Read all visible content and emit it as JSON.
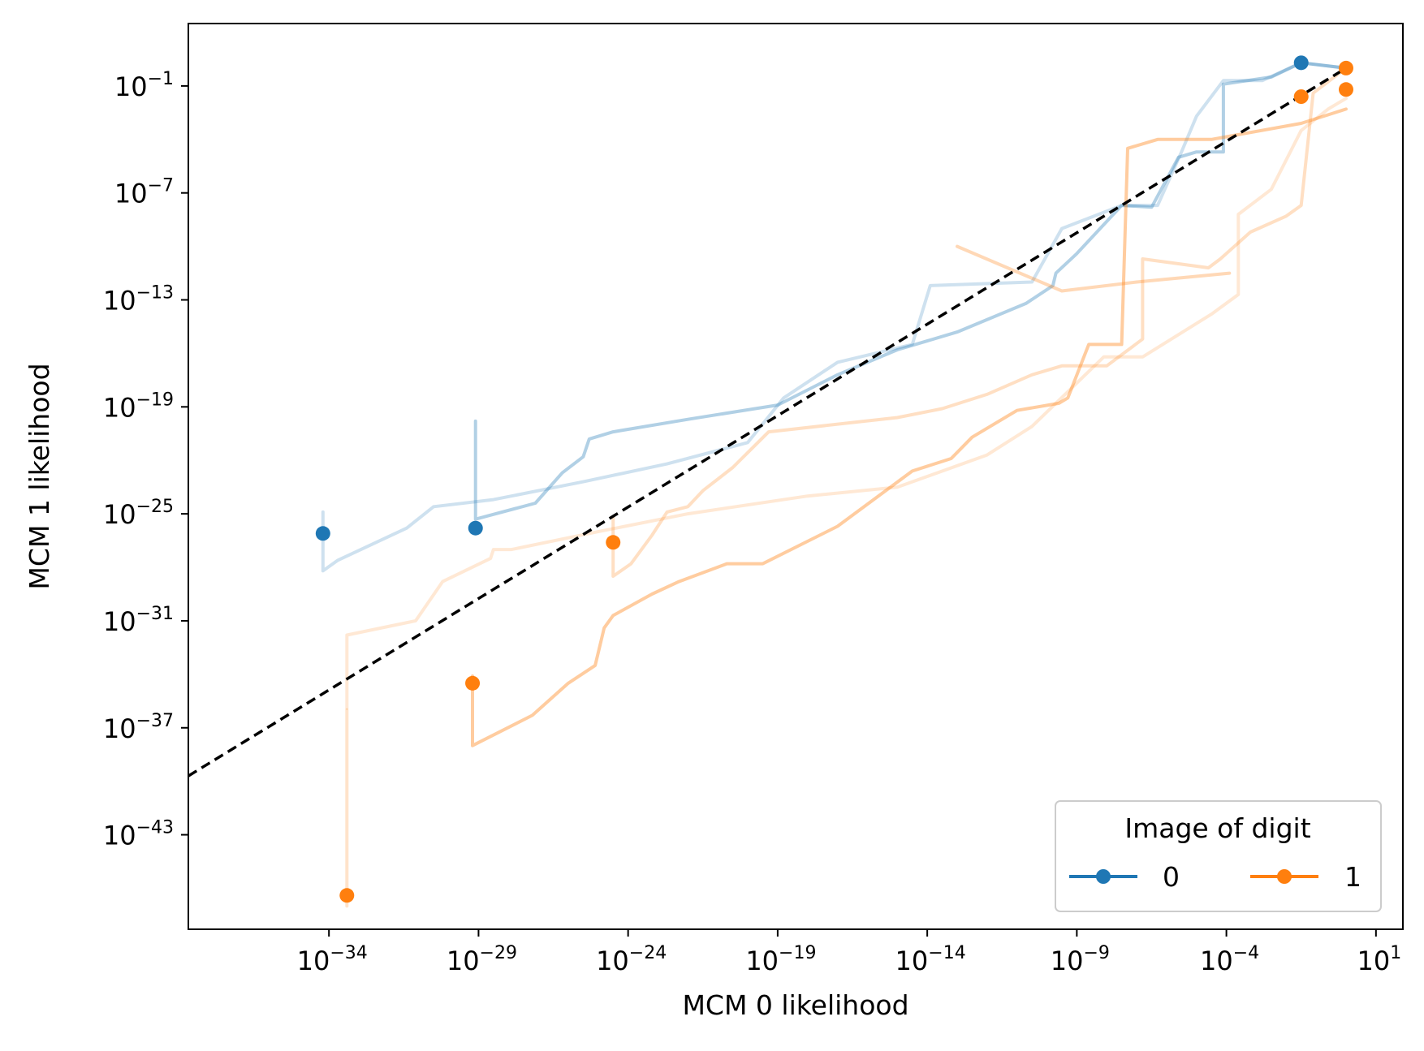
{
  "chart_data": {
    "type": "line",
    "xlabel": "MCM 0 likelihood",
    "ylabel": "MCM 1 likelihood",
    "x_scale": "log",
    "y_scale": "log",
    "xlim_log10": [
      -38.7,
      1.9
    ],
    "ylim_log10": [
      -48.3,
      2.5
    ],
    "x_ticks_log10": [
      -34,
      -29,
      -24,
      -19,
      -14,
      -9,
      -4,
      1
    ],
    "y_ticks_log10": [
      -43,
      -37,
      -31,
      -25,
      -19,
      -13,
      -7,
      -1
    ],
    "tick_base": "10",
    "grid": false,
    "diagonal": {
      "style": "dashed",
      "color": "#000000",
      "from_log10": [
        -38.7,
        -39.7
      ],
      "to_log10": [
        0,
        0
      ]
    },
    "legend": {
      "title": "Image of digit",
      "placement": "bottom-right",
      "entries": [
        {
          "label": "0",
          "color": "#1f77b4"
        },
        {
          "label": "1",
          "color": "#ff7f0e"
        }
      ]
    },
    "series": [
      {
        "digit": "0",
        "color": "#1f77b4",
        "opacity": 0.22,
        "points_log10": [
          [
            -34.2,
            -24.9
          ],
          [
            -34.2,
            -28.2
          ],
          [
            -33.7,
            -27.6
          ],
          [
            -31.4,
            -25.8
          ],
          [
            -30.5,
            -24.6
          ],
          [
            -28.5,
            -24.2
          ],
          [
            -25.5,
            -23.2
          ],
          [
            -22.7,
            -22.2
          ],
          [
            -20,
            -21
          ],
          [
            -18.8,
            -18.5
          ],
          [
            -17,
            -16.5
          ],
          [
            -14.5,
            -15.5
          ],
          [
            -13.9,
            -12.2
          ],
          [
            -10.5,
            -12
          ],
          [
            -9.5,
            -9
          ],
          [
            -7.5,
            -7.7
          ],
          [
            -6.3,
            -7.7
          ],
          [
            -5.5,
            -4.7
          ],
          [
            -5,
            -2.7
          ],
          [
            -4.1,
            -0.7
          ],
          [
            -2.8,
            -0.7
          ],
          [
            -1.5,
            0.3
          ],
          [
            0,
            0
          ]
        ]
      },
      {
        "digit": "0",
        "color": "#1f77b4",
        "opacity": 0.35,
        "points_log10": [
          [
            -29.1,
            -25.3
          ],
          [
            -29.1,
            -19.8
          ],
          [
            -29.1,
            -25.3
          ],
          [
            -27.1,
            -24.4
          ],
          [
            -26.2,
            -22.7
          ],
          [
            -25.5,
            -21.8
          ],
          [
            -25.3,
            -20.8
          ],
          [
            -24.5,
            -20.4
          ],
          [
            -22,
            -19.7
          ],
          [
            -19,
            -18.9
          ],
          [
            -17,
            -17.2
          ],
          [
            -15,
            -15.8
          ],
          [
            -13,
            -14.8
          ],
          [
            -10.7,
            -13.2
          ],
          [
            -9.8,
            -12.2
          ],
          [
            -9.7,
            -11.5
          ],
          [
            -9,
            -10.4
          ],
          [
            -8.5,
            -9.5
          ],
          [
            -7.5,
            -7.7
          ],
          [
            -6.5,
            -7.8
          ],
          [
            -5.6,
            -5
          ],
          [
            -5,
            -4.7
          ],
          [
            -4.1,
            -4.7
          ],
          [
            -4.1,
            -0.9
          ],
          [
            -2.5,
            -0.5
          ],
          [
            -1.5,
            0.3
          ],
          [
            0,
            0
          ]
        ]
      },
      {
        "digit": "1",
        "color": "#ff7f0e",
        "opacity": 0.18,
        "points_log10": [
          [
            -33.4,
            -35.9
          ],
          [
            -33.4,
            -31.8
          ],
          [
            -31.1,
            -31
          ],
          [
            -30.2,
            -28.8
          ],
          [
            -28.6,
            -27.5
          ],
          [
            -28.5,
            -27
          ],
          [
            -27.9,
            -27
          ],
          [
            -25,
            -26
          ],
          [
            -22,
            -25
          ],
          [
            -18,
            -24
          ],
          [
            -15,
            -23.5
          ],
          [
            -12,
            -21.7
          ],
          [
            -10.5,
            -20.1
          ],
          [
            -8.1,
            -16.2
          ],
          [
            -6.8,
            -16.2
          ],
          [
            -4.5,
            -13.8
          ],
          [
            -3.6,
            -12.7
          ],
          [
            -3.6,
            -8.2
          ],
          [
            -2.5,
            -6.8
          ],
          [
            -1.5,
            -3.5
          ],
          [
            -0.6,
            -2.3
          ],
          [
            0,
            -1.7
          ]
        ]
      },
      {
        "digit": "1",
        "color": "#ff7f0e",
        "opacity": 0.22,
        "points_log10": [
          [
            -33.4,
            -41.5
          ],
          [
            -33.4,
            -47
          ],
          [
            -33.4,
            -36
          ]
        ]
      },
      {
        "digit": "1",
        "color": "#ff7f0e",
        "opacity": 0.25,
        "points_log10": [
          [
            -24.5,
            -25.2
          ],
          [
            -24.5,
            -28.5
          ],
          [
            -23.9,
            -27.8
          ],
          [
            -23.2,
            -26.2
          ],
          [
            -22.7,
            -24.9
          ],
          [
            -22,
            -24.6
          ],
          [
            -21.5,
            -23.7
          ],
          [
            -20.5,
            -22.4
          ],
          [
            -19.3,
            -20.4
          ],
          [
            -15,
            -19.6
          ],
          [
            -13.5,
            -19.1
          ],
          [
            -12,
            -18.3
          ],
          [
            -10.5,
            -17.2
          ],
          [
            -9.5,
            -16.7
          ],
          [
            -8,
            -16.7
          ],
          [
            -6.8,
            -15.2
          ],
          [
            -6.8,
            -10.7
          ],
          [
            -4.6,
            -11.2
          ],
          [
            -4.2,
            -10.7
          ],
          [
            -3.2,
            -9.2
          ],
          [
            -2,
            -8.3
          ],
          [
            -1.5,
            -7.7
          ],
          [
            -1.1,
            -1.4
          ],
          [
            0,
            0
          ]
        ]
      },
      {
        "digit": "1",
        "color": "#ff7f0e",
        "opacity": 0.4,
        "points_log10": [
          [
            -29.2,
            -34.1
          ],
          [
            -29.2,
            -38
          ],
          [
            -27.2,
            -36.3
          ],
          [
            -26,
            -34.5
          ],
          [
            -25.1,
            -33.5
          ],
          [
            -24.8,
            -31.4
          ],
          [
            -24.5,
            -30.7
          ],
          [
            -23.2,
            -29.5
          ],
          [
            -22.3,
            -28.8
          ],
          [
            -20.7,
            -27.8
          ],
          [
            -19.5,
            -27.8
          ],
          [
            -17,
            -25.7
          ],
          [
            -14.5,
            -22.6
          ],
          [
            -13.2,
            -21.9
          ],
          [
            -12.5,
            -20.7
          ],
          [
            -11,
            -19.2
          ],
          [
            -9.6,
            -18.8
          ],
          [
            -9.3,
            -18.5
          ],
          [
            -8.6,
            -15.5
          ],
          [
            -7.5,
            -15.5
          ],
          [
            -7.3,
            -4.5
          ],
          [
            -6.3,
            -4
          ],
          [
            -4.5,
            -4
          ],
          [
            -1.5,
            -3.1
          ],
          [
            0,
            -2.3
          ]
        ]
      },
      {
        "digit": "1",
        "color": "#ff7f0e",
        "opacity": 0.3,
        "points_log10": [
          [
            -13,
            -10
          ],
          [
            -9.5,
            -12.5
          ],
          [
            -7,
            -12
          ],
          [
            -3.9,
            -11.5
          ]
        ]
      }
    ],
    "endpoints": [
      {
        "digit": "0",
        "color": "#1f77b4",
        "points_log10": [
          [
            -34.2,
            -26.1
          ],
          [
            -29.1,
            -25.8
          ],
          [
            -1.5,
            0.3
          ]
        ]
      },
      {
        "digit": "1",
        "color": "#ff7f0e",
        "points_log10": [
          [
            -33.4,
            -46.4
          ],
          [
            -29.2,
            -34.5
          ],
          [
            -24.5,
            -26.6
          ],
          [
            -1.5,
            -1.6
          ],
          [
            0,
            0
          ],
          [
            0,
            -1.2
          ]
        ]
      }
    ]
  }
}
